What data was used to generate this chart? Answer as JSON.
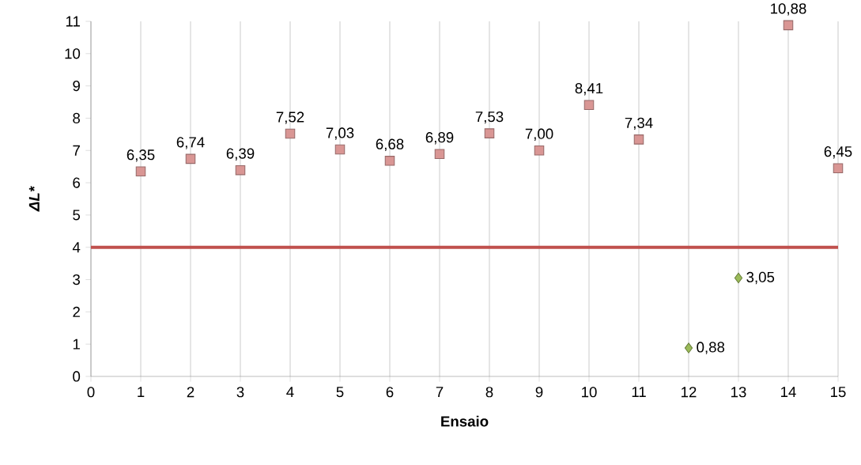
{
  "chart_data": {
    "type": "scatter",
    "xlabel": "Ensaio",
    "ylabel": "ΔL*",
    "series": [
      {
        "x": [
          1,
          2,
          3,
          4,
          5,
          6,
          7,
          8,
          9,
          10,
          11,
          14,
          15
        ],
        "values": [
          6.35,
          6.74,
          6.39,
          7.52,
          7.03,
          6.68,
          6.89,
          7.53,
          7.0,
          8.41,
          7.34,
          10.88,
          6.45
        ],
        "value_labels": [
          "6,35",
          "6,74",
          "6,39",
          "7,52",
          "7,03",
          "6,68",
          "6,89",
          "7,53",
          "7,00",
          "8,41",
          "7,34",
          "10,88",
          "6,45"
        ],
        "color": "#d99694",
        "marker": "square"
      },
      {
        "x": [
          12,
          13
        ],
        "values": [
          0.88,
          3.05
        ],
        "value_labels": [
          "0,88",
          "3,05"
        ],
        "color": "#9bbb59",
        "marker": "diamond"
      }
    ],
    "xlim": [
      0,
      15
    ],
    "ylim": [
      0,
      11
    ],
    "xticks": [
      0,
      1,
      2,
      3,
      4,
      5,
      6,
      7,
      8,
      9,
      10,
      11,
      12,
      13,
      14,
      15
    ],
    "yticks": [
      0,
      1,
      2,
      3,
      4,
      5,
      6,
      7,
      8,
      9,
      10,
      11
    ],
    "ref_lines": [
      {
        "axis": "y",
        "value": 4,
        "color": "#c0504d"
      }
    ],
    "grid": "x"
  }
}
